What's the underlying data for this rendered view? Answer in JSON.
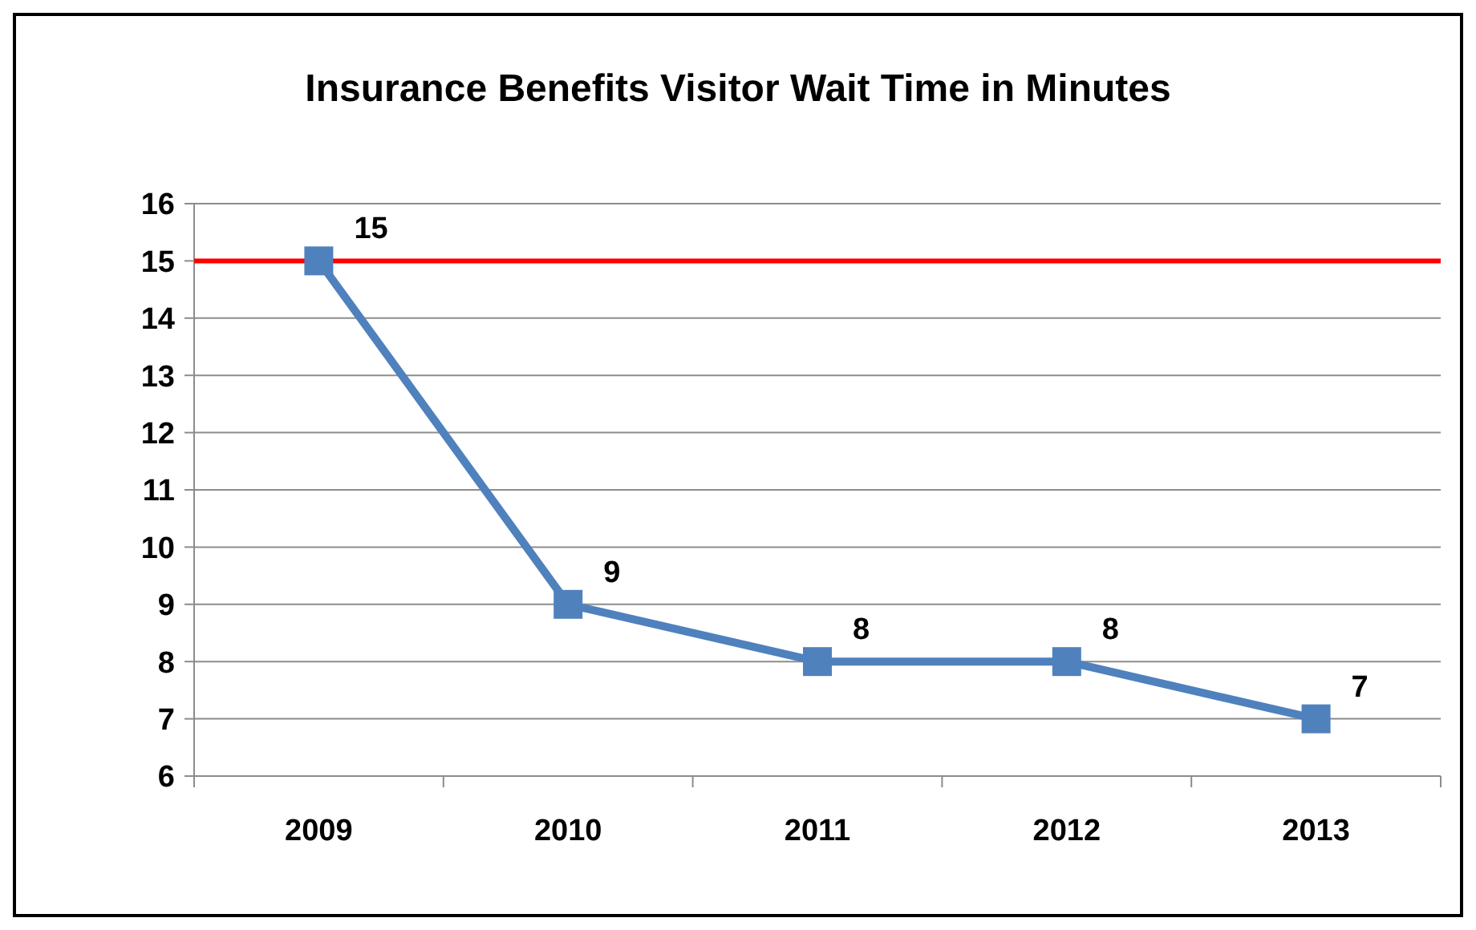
{
  "chart_data": {
    "type": "line",
    "title": "Insurance Benefits Visitor Wait Time in Minutes",
    "categories": [
      "2009",
      "2010",
      "2011",
      "2012",
      "2013"
    ],
    "series": [
      {
        "color": "#4f81bd",
        "values": [
          15,
          9,
          8,
          8,
          7
        ]
      }
    ],
    "ylim": [
      6,
      16
    ],
    "yticks": [
      6,
      7,
      8,
      9,
      10,
      11,
      12,
      13,
      14,
      15,
      16
    ],
    "grid": "y",
    "marker": "square",
    "line_style": "solid",
    "data_labels": true,
    "ref_lines": [
      {
        "axis": "y",
        "value": 15,
        "color": "#ff0000"
      }
    ]
  }
}
